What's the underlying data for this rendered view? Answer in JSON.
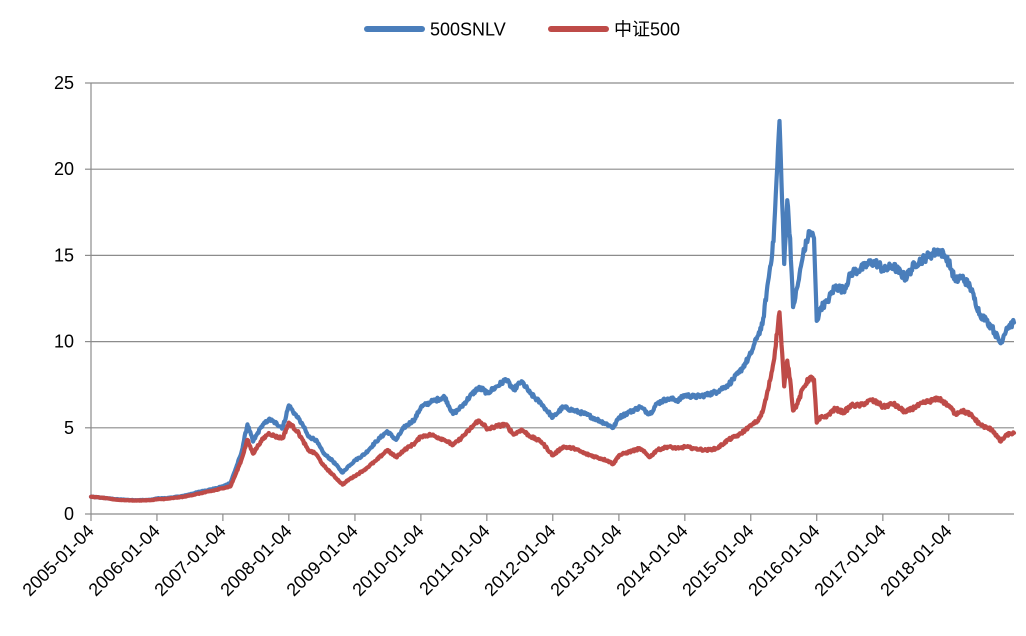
{
  "chart_data": {
    "type": "line",
    "title": "",
    "xlabel": "",
    "ylabel": "",
    "ylim": [
      0,
      25
    ],
    "yticks": [
      0,
      5,
      10,
      15,
      20,
      25
    ],
    "xticks": [
      "2005-01-04",
      "2006-01-04",
      "2007-01-04",
      "2008-01-04",
      "2009-01-04",
      "2010-01-04",
      "2011-01-04",
      "2012-01-04",
      "2013-01-04",
      "2014-01-04",
      "2015-01-04",
      "2016-01-04",
      "2017-01-04",
      "2018-01-04"
    ],
    "x_start": "2005-01-04",
    "x_end": "2018-12-31",
    "grid": "horizontal",
    "legend_position": "top-center",
    "series": [
      {
        "name": "500SNLV",
        "color": "#4a7ebb",
        "points": [
          [
            "2005-01-04",
            1.0
          ],
          [
            "2005-03-01",
            0.95
          ],
          [
            "2005-06-01",
            0.85
          ],
          [
            "2005-09-01",
            0.8
          ],
          [
            "2005-12-01",
            0.82
          ],
          [
            "2006-01-04",
            0.9
          ],
          [
            "2006-03-01",
            0.92
          ],
          [
            "2006-06-01",
            1.05
          ],
          [
            "2006-09-01",
            1.3
          ],
          [
            "2006-12-01",
            1.5
          ],
          [
            "2007-01-04",
            1.6
          ],
          [
            "2007-02-15",
            1.8
          ],
          [
            "2007-03-15",
            2.6
          ],
          [
            "2007-04-15",
            3.5
          ],
          [
            "2007-05-20",
            5.2
          ],
          [
            "2007-06-20",
            4.2
          ],
          [
            "2007-08-01",
            5.0
          ],
          [
            "2007-09-15",
            5.5
          ],
          [
            "2007-10-20",
            5.3
          ],
          [
            "2007-12-01",
            5.0
          ],
          [
            "2008-01-04",
            6.3
          ],
          [
            "2008-02-20",
            5.6
          ],
          [
            "2008-03-20",
            5.2
          ],
          [
            "2008-04-20",
            4.5
          ],
          [
            "2008-06-01",
            4.3
          ],
          [
            "2008-07-15",
            3.5
          ],
          [
            "2008-09-01",
            3.1
          ],
          [
            "2008-10-28",
            2.4
          ],
          [
            "2008-12-01",
            2.8
          ],
          [
            "2009-01-04",
            3.1
          ],
          [
            "2009-03-01",
            3.5
          ],
          [
            "2009-05-01",
            4.2
          ],
          [
            "2009-07-01",
            4.8
          ],
          [
            "2009-08-20",
            4.3
          ],
          [
            "2009-10-01",
            5.0
          ],
          [
            "2009-12-01",
            5.5
          ],
          [
            "2010-01-04",
            6.2
          ],
          [
            "2010-03-01",
            6.5
          ],
          [
            "2010-05-15",
            6.8
          ],
          [
            "2010-07-01",
            5.8
          ],
          [
            "2010-08-15",
            6.2
          ],
          [
            "2010-10-01",
            6.8
          ],
          [
            "2010-11-15",
            7.3
          ],
          [
            "2010-12-20",
            7.2
          ],
          [
            "2011-01-04",
            7.0
          ],
          [
            "2011-03-01",
            7.4
          ],
          [
            "2011-04-20",
            7.8
          ],
          [
            "2011-06-01",
            7.2
          ],
          [
            "2011-07-15",
            7.7
          ],
          [
            "2011-09-01",
            7.0
          ],
          [
            "2011-11-01",
            6.4
          ],
          [
            "2012-01-04",
            5.6
          ],
          [
            "2012-03-01",
            6.2
          ],
          [
            "2012-05-01",
            6.0
          ],
          [
            "2012-07-01",
            5.8
          ],
          [
            "2012-09-01",
            5.5
          ],
          [
            "2012-11-01",
            5.2
          ],
          [
            "2012-12-04",
            5.0
          ],
          [
            "2013-01-04",
            5.6
          ],
          [
            "2013-03-01",
            5.9
          ],
          [
            "2013-05-01",
            6.2
          ],
          [
            "2013-06-25",
            5.8
          ],
          [
            "2013-08-01",
            6.4
          ],
          [
            "2013-10-01",
            6.7
          ],
          [
            "2013-12-01",
            6.6
          ],
          [
            "2014-01-04",
            6.9
          ],
          [
            "2014-03-01",
            6.8
          ],
          [
            "2014-05-01",
            6.9
          ],
          [
            "2014-07-01",
            7.1
          ],
          [
            "2014-09-01",
            7.5
          ],
          [
            "2014-11-01",
            8.2
          ],
          [
            "2014-12-20",
            9.0
          ],
          [
            "2015-01-04",
            9.3
          ],
          [
            "2015-02-10",
            10.3
          ],
          [
            "2015-03-10",
            11.0
          ],
          [
            "2015-04-10",
            13.5
          ],
          [
            "2015-05-10",
            15.8
          ],
          [
            "2015-06-12",
            22.8
          ],
          [
            "2015-07-08",
            14.5
          ],
          [
            "2015-07-25",
            18.2
          ],
          [
            "2015-08-10",
            16.0
          ],
          [
            "2015-08-26",
            12.0
          ],
          [
            "2015-09-20",
            13.2
          ],
          [
            "2015-10-20",
            15.0
          ],
          [
            "2015-11-25",
            16.4
          ],
          [
            "2015-12-20",
            16.0
          ],
          [
            "2016-01-04",
            11.2
          ],
          [
            "2016-01-28",
            12.0
          ],
          [
            "2016-03-01",
            12.3
          ],
          [
            "2016-04-15",
            13.2
          ],
          [
            "2016-06-01",
            13.0
          ],
          [
            "2016-07-15",
            14.0
          ],
          [
            "2016-09-01",
            14.2
          ],
          [
            "2016-11-01",
            14.6
          ],
          [
            "2016-12-15",
            14.5
          ],
          [
            "2017-01-04",
            14.1
          ],
          [
            "2017-03-01",
            14.4
          ],
          [
            "2017-05-10",
            13.7
          ],
          [
            "2017-07-01",
            14.5
          ],
          [
            "2017-09-01",
            14.9
          ],
          [
            "2017-11-15",
            15.3
          ],
          [
            "2017-12-15",
            14.9
          ],
          [
            "2018-01-04",
            14.6
          ],
          [
            "2018-02-10",
            13.5
          ],
          [
            "2018-03-15",
            13.8
          ],
          [
            "2018-05-01",
            13.2
          ],
          [
            "2018-06-25",
            11.6
          ],
          [
            "2018-08-01",
            11.2
          ],
          [
            "2018-09-01",
            10.8
          ],
          [
            "2018-10-18",
            9.9
          ],
          [
            "2018-11-20",
            10.8
          ],
          [
            "2018-12-31",
            11.1
          ]
        ]
      },
      {
        "name": "中证500",
        "color": "#be4b48",
        "points": [
          [
            "2005-01-04",
            1.0
          ],
          [
            "2005-03-01",
            0.95
          ],
          [
            "2005-06-01",
            0.82
          ],
          [
            "2005-09-01",
            0.78
          ],
          [
            "2005-12-01",
            0.8
          ],
          [
            "2006-01-04",
            0.85
          ],
          [
            "2006-03-01",
            0.88
          ],
          [
            "2006-06-01",
            1.0
          ],
          [
            "2006-09-01",
            1.2
          ],
          [
            "2006-12-01",
            1.4
          ],
          [
            "2007-01-04",
            1.5
          ],
          [
            "2007-02-15",
            1.6
          ],
          [
            "2007-03-15",
            2.3
          ],
          [
            "2007-04-15",
            3.1
          ],
          [
            "2007-05-20",
            4.3
          ],
          [
            "2007-06-20",
            3.5
          ],
          [
            "2007-08-01",
            4.2
          ],
          [
            "2007-09-15",
            4.7
          ],
          [
            "2007-10-20",
            4.5
          ],
          [
            "2007-12-01",
            4.4
          ],
          [
            "2008-01-04",
            5.3
          ],
          [
            "2008-02-20",
            4.8
          ],
          [
            "2008-03-20",
            4.3
          ],
          [
            "2008-04-20",
            3.7
          ],
          [
            "2008-06-01",
            3.5
          ],
          [
            "2008-07-15",
            2.8
          ],
          [
            "2008-09-01",
            2.3
          ],
          [
            "2008-10-28",
            1.7
          ],
          [
            "2008-12-01",
            2.0
          ],
          [
            "2009-01-04",
            2.2
          ],
          [
            "2009-03-01",
            2.6
          ],
          [
            "2009-05-01",
            3.1
          ],
          [
            "2009-07-01",
            3.7
          ],
          [
            "2009-08-20",
            3.3
          ],
          [
            "2009-10-01",
            3.7
          ],
          [
            "2009-12-01",
            4.1
          ],
          [
            "2010-01-04",
            4.5
          ],
          [
            "2010-03-01",
            4.6
          ],
          [
            "2010-05-15",
            4.3
          ],
          [
            "2010-07-01",
            4.0
          ],
          [
            "2010-08-15",
            4.4
          ],
          [
            "2010-10-01",
            4.9
          ],
          [
            "2010-11-15",
            5.4
          ],
          [
            "2010-12-20",
            5.2
          ],
          [
            "2011-01-04",
            4.9
          ],
          [
            "2011-03-01",
            5.1
          ],
          [
            "2011-04-20",
            5.2
          ],
          [
            "2011-06-01",
            4.6
          ],
          [
            "2011-07-15",
            4.9
          ],
          [
            "2011-09-01",
            4.5
          ],
          [
            "2011-11-01",
            4.2
          ],
          [
            "2012-01-04",
            3.4
          ],
          [
            "2012-03-01",
            3.9
          ],
          [
            "2012-05-01",
            3.8
          ],
          [
            "2012-07-01",
            3.5
          ],
          [
            "2012-09-01",
            3.3
          ],
          [
            "2012-11-01",
            3.1
          ],
          [
            "2012-12-04",
            2.9
          ],
          [
            "2013-01-04",
            3.4
          ],
          [
            "2013-03-01",
            3.6
          ],
          [
            "2013-05-01",
            3.8
          ],
          [
            "2013-06-25",
            3.3
          ],
          [
            "2013-08-01",
            3.7
          ],
          [
            "2013-10-01",
            3.9
          ],
          [
            "2013-12-01",
            3.8
          ],
          [
            "2014-01-04",
            3.9
          ],
          [
            "2014-03-01",
            3.8
          ],
          [
            "2014-05-01",
            3.7
          ],
          [
            "2014-07-01",
            3.8
          ],
          [
            "2014-09-01",
            4.3
          ],
          [
            "2014-11-01",
            4.6
          ],
          [
            "2014-12-20",
            5.0
          ],
          [
            "2015-01-04",
            5.1
          ],
          [
            "2015-02-10",
            5.4
          ],
          [
            "2015-03-10",
            5.9
          ],
          [
            "2015-04-10",
            7.2
          ],
          [
            "2015-05-10",
            8.8
          ],
          [
            "2015-06-12",
            11.7
          ],
          [
            "2015-07-08",
            7.4
          ],
          [
            "2015-07-25",
            8.9
          ],
          [
            "2015-08-10",
            7.8
          ],
          [
            "2015-08-26",
            6.0
          ],
          [
            "2015-09-20",
            6.4
          ],
          [
            "2015-10-20",
            7.3
          ],
          [
            "2015-11-25",
            7.9
          ],
          [
            "2015-12-20",
            7.8
          ],
          [
            "2016-01-04",
            5.3
          ],
          [
            "2016-01-28",
            5.6
          ],
          [
            "2016-03-01",
            5.7
          ],
          [
            "2016-04-15",
            6.1
          ],
          [
            "2016-06-01",
            5.9
          ],
          [
            "2016-07-15",
            6.3
          ],
          [
            "2016-09-01",
            6.3
          ],
          [
            "2016-11-01",
            6.6
          ],
          [
            "2016-12-15",
            6.4
          ],
          [
            "2017-01-04",
            6.2
          ],
          [
            "2017-03-01",
            6.4
          ],
          [
            "2017-05-10",
            5.9
          ],
          [
            "2017-07-01",
            6.2
          ],
          [
            "2017-09-01",
            6.5
          ],
          [
            "2017-11-15",
            6.7
          ],
          [
            "2017-12-15",
            6.4
          ],
          [
            "2018-01-04",
            6.3
          ],
          [
            "2018-02-10",
            5.8
          ],
          [
            "2018-03-15",
            6.0
          ],
          [
            "2018-05-01",
            5.8
          ],
          [
            "2018-06-25",
            5.2
          ],
          [
            "2018-08-01",
            5.0
          ],
          [
            "2018-09-01",
            4.9
          ],
          [
            "2018-10-18",
            4.2
          ],
          [
            "2018-11-20",
            4.6
          ],
          [
            "2018-12-31",
            4.7
          ]
        ]
      }
    ]
  }
}
